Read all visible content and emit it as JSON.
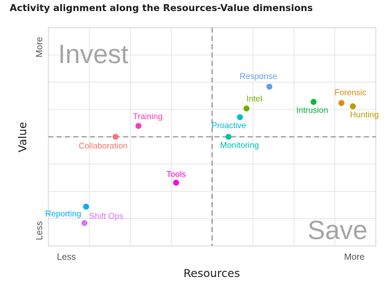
{
  "chart_data": {
    "type": "scatter",
    "title": "Activity alignment along the Resources-Value dimensions",
    "xlabel": "Resources",
    "ylabel": "Value",
    "x_tick_labels": [
      "Less",
      "More"
    ],
    "y_tick_labels": [
      "Less",
      "More"
    ],
    "xlim": [
      0,
      10
    ],
    "ylim": [
      0,
      10
    ],
    "divider": {
      "x": 5,
      "y": 5
    },
    "quadrant_labels": {
      "top_left": "Invest",
      "bottom_right": "Save"
    },
    "grid": true,
    "legend": "none",
    "points": [
      {
        "label": "Response",
        "x": 6.75,
        "y": 7.3,
        "color": "#619CFF"
      },
      {
        "label": "Forensic",
        "x": 8.95,
        "y": 6.55,
        "color": "#E58700"
      },
      {
        "label": "Intel",
        "x": 6.05,
        "y": 6.3,
        "color": "#6BB100"
      },
      {
        "label": "Intrusion",
        "x": 8.1,
        "y": 6.6,
        "color": "#00BA38"
      },
      {
        "label": "Hunting",
        "x": 9.3,
        "y": 6.4,
        "color": "#B79F00"
      },
      {
        "label": "Proactive",
        "x": 5.85,
        "y": 5.9,
        "color": "#00BCD8"
      },
      {
        "label": "Monitoring",
        "x": 5.5,
        "y": 5.0,
        "color": "#00C0AF"
      },
      {
        "label": "Training",
        "x": 2.75,
        "y": 5.5,
        "color": "#FF3AB5"
      },
      {
        "label": "Collaboration",
        "x": 2.05,
        "y": 5.0,
        "color": "#F8766D"
      },
      {
        "label": "Tools",
        "x": 3.9,
        "y": 2.9,
        "color": "#FF00EA"
      },
      {
        "label": "Reporting",
        "x": 1.15,
        "y": 1.8,
        "color": "#00B0F6"
      },
      {
        "label": "Shift Ops",
        "x": 1.1,
        "y": 1.05,
        "color": "#DB72FB"
      }
    ]
  }
}
